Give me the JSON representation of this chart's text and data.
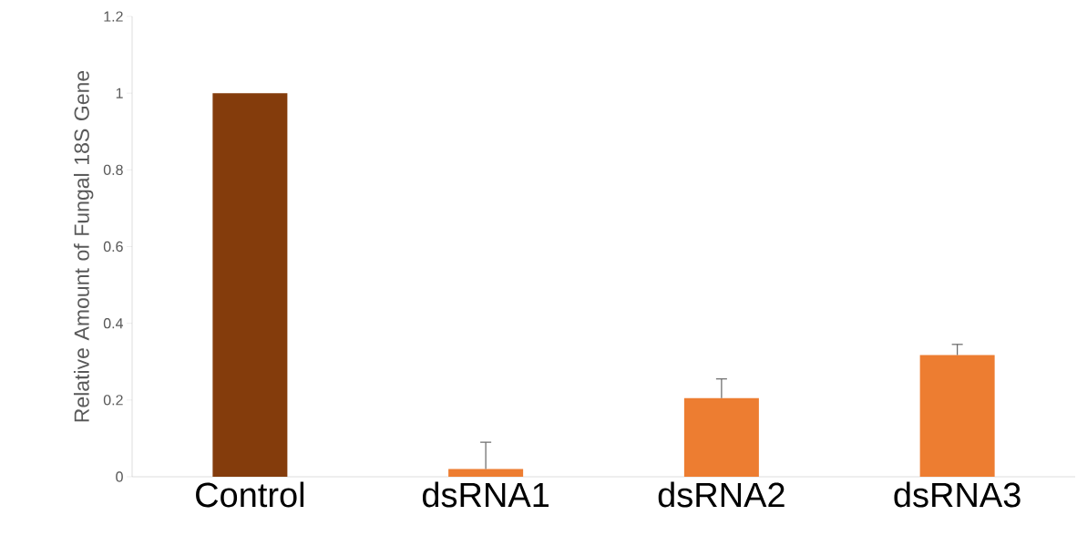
{
  "chart_data": {
    "type": "bar",
    "ylabel": "Relative Amount of Fungal 18S Gene",
    "categories": [
      "Control",
      "dsRNA1",
      "dsRNA2",
      "dsRNA3"
    ],
    "values": [
      1.0,
      0.02,
      0.205,
      0.317
    ],
    "colors": [
      "#843c0c",
      "#ed7d31",
      "#ed7d31",
      "#ed7d31"
    ],
    "errors": [
      null,
      [
        0.02,
        0.09
      ],
      [
        0.205,
        0.255
      ],
      [
        0.317,
        0.345
      ]
    ],
    "ylim": [
      0,
      1.2
    ],
    "yticks": [
      0,
      0.2,
      0.4,
      0.6,
      0.8,
      1,
      1.2
    ],
    "grid": false
  }
}
